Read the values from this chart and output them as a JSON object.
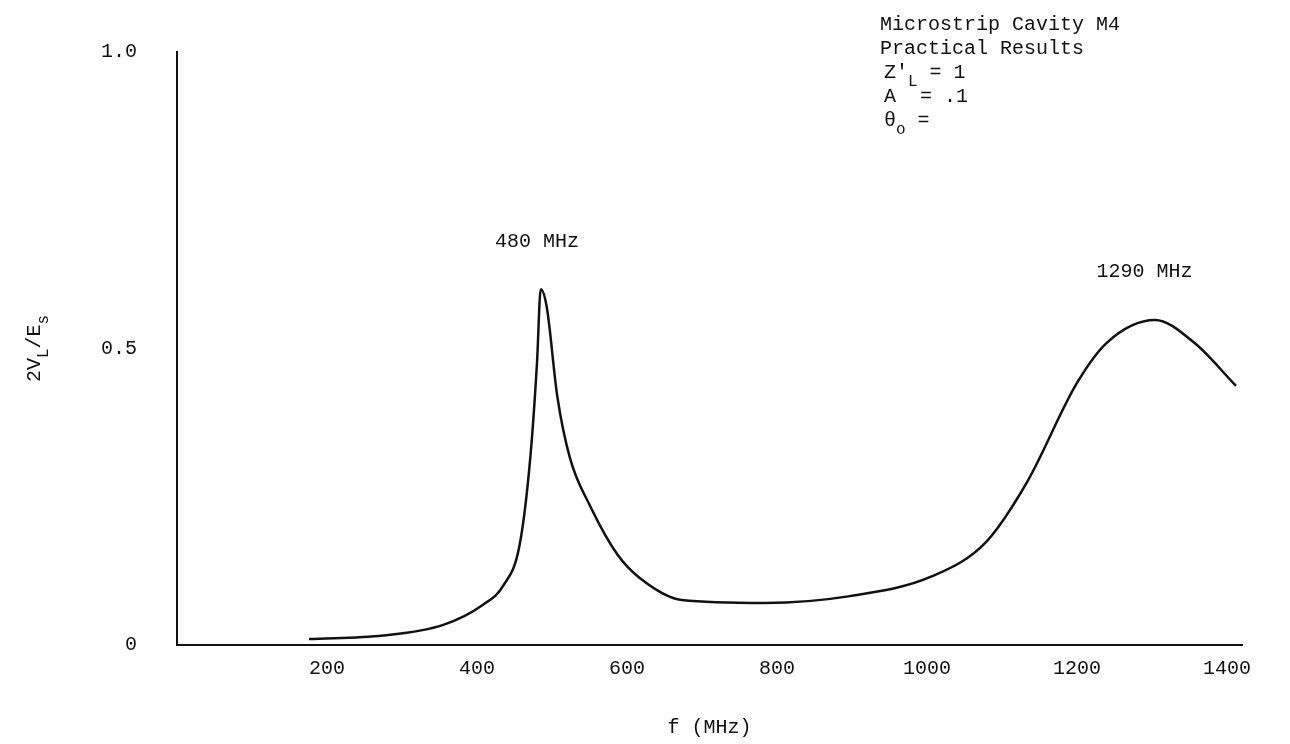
{
  "chart_data": {
    "type": "line",
    "title": "Microstrip Cavity M4",
    "subtitle": "Practical Results",
    "xlabel": "f (MHz)",
    "ylabel": "2V$_{L}$/E$_{s}$",
    "annotations": [
      "Z′$_{L}$ = 1",
      "A  = .1",
      "θ$_{o}$ =",
      {
        "text": "480 MHz",
        "x": 480,
        "y": 0.6
      },
      {
        "text": "1290 MHz",
        "x": 1290,
        "y": 0.55
      }
    ],
    "x": [
      176,
      275,
      355,
      408,
      435,
      457,
      471,
      480,
      485,
      493,
      507,
      524,
      551,
      587,
      617,
      673,
      784,
      895,
      1007,
      1079,
      1133,
      1200,
      1240,
      1304,
      1356,
      1412
    ],
    "series": [
      {
        "color": "#111111",
        "values": [
          0.01,
          0.016,
          0.034,
          0.068,
          0.1,
          0.17,
          0.315,
          0.476,
          0.6,
          0.57,
          0.42,
          0.315,
          0.234,
          0.153,
          0.113,
          0.076,
          0.071,
          0.082,
          0.116,
          0.174,
          0.274,
          0.442,
          0.51,
          0.548,
          0.51,
          0.437
        ]
      }
    ],
    "xlim": [
      0,
      1420
    ],
    "ylim": [
      0,
      1.0
    ],
    "xticks": [
      200,
      400,
      600,
      800,
      1000,
      1200,
      1400
    ],
    "yticks": [
      0,
      0.5,
      {
        "value": 1.0,
        "label": "1.0"
      }
    ],
    "legend": false,
    "marker": "none"
  }
}
